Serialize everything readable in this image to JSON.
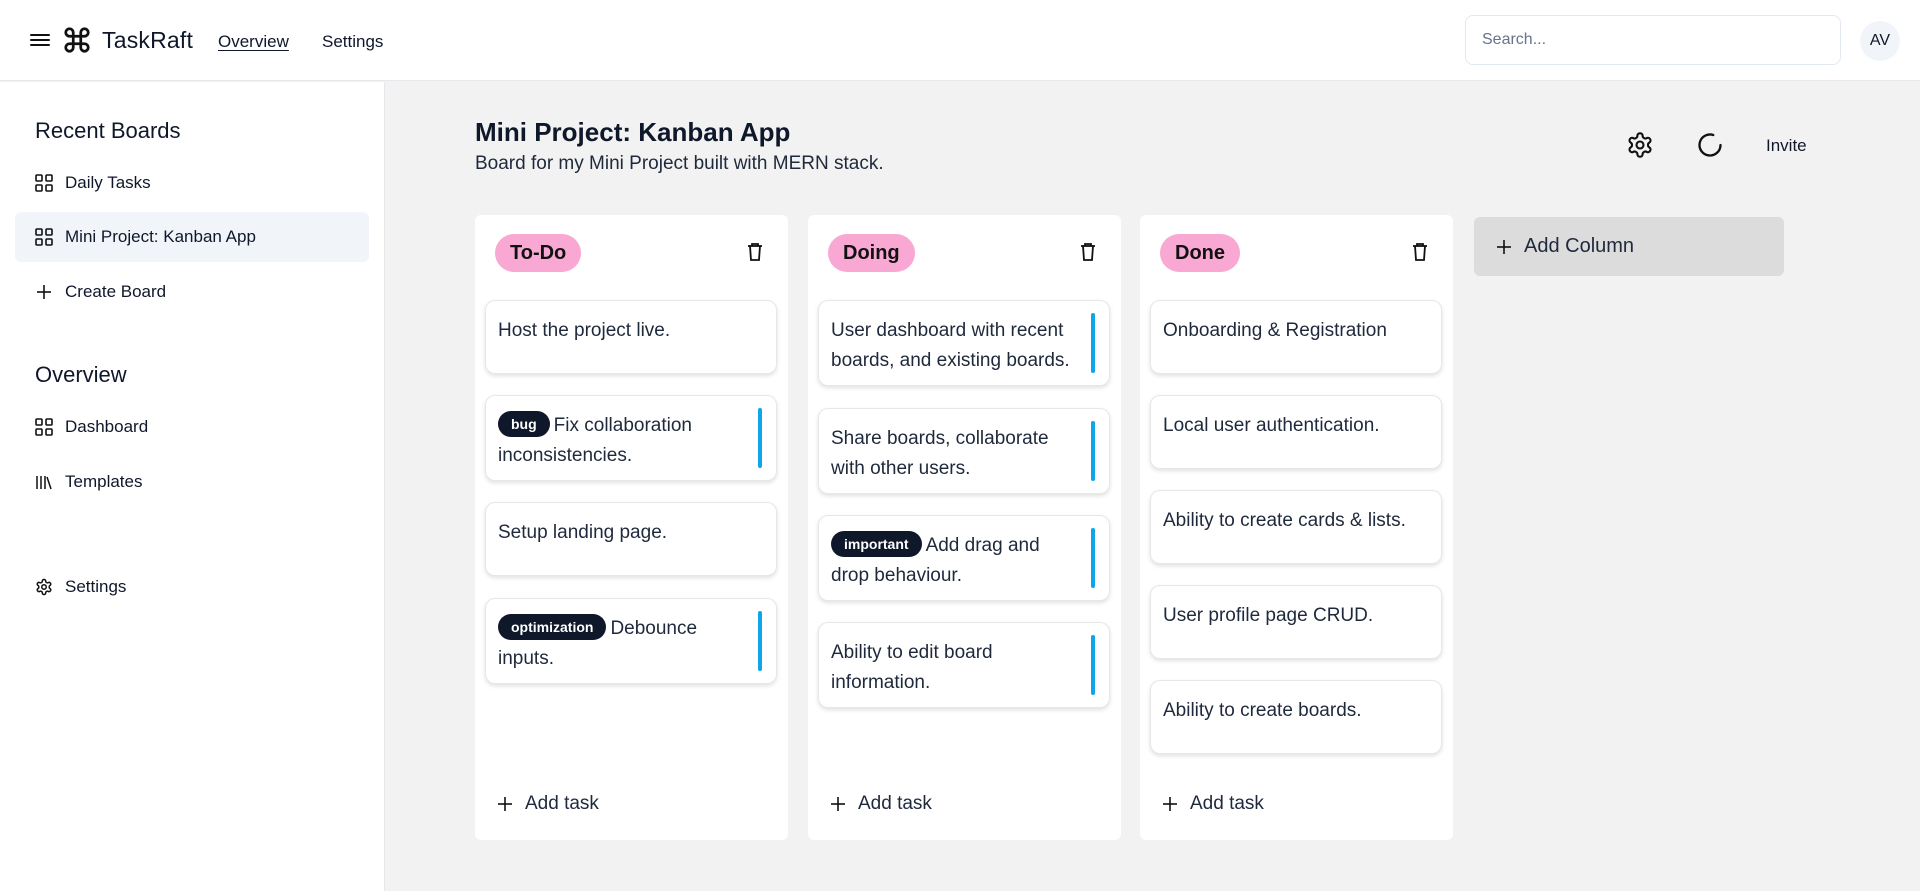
{
  "header": {
    "brand": "TaskRaft",
    "nav": [
      {
        "label": "Overview"
      },
      {
        "label": "Settings"
      }
    ],
    "search_placeholder": "Search...",
    "avatar_initials": "AV"
  },
  "sidebar": {
    "recent_title": "Recent Boards",
    "recent_items": [
      {
        "label": "Daily Tasks",
        "icon": "grid-icon"
      },
      {
        "label": "Mini Project: Kanban App",
        "icon": "grid-icon",
        "active": true
      },
      {
        "label": "Create Board",
        "icon": "plus-icon"
      }
    ],
    "overview_title": "Overview",
    "overview_items": [
      {
        "label": "Dashboard",
        "icon": "grid-icon"
      },
      {
        "label": "Templates",
        "icon": "library-icon"
      }
    ],
    "settings_label": "Settings"
  },
  "board": {
    "title": "Mini Project: Kanban App",
    "description": "Board for my Mini Project built with MERN stack.",
    "invite_label": "Invite",
    "add_column_label": "Add Column",
    "add_task_label": "Add task",
    "columns": [
      {
        "name": "To-Do",
        "cards": [
          {
            "text": "Host the project live.",
            "tag": "",
            "accent": false
          },
          {
            "text": "Fix collaboration inconsistencies.",
            "tag": "bug",
            "accent": true
          },
          {
            "text": "Setup landing page.",
            "tag": "",
            "accent": false
          },
          {
            "text": "Debounce inputs.",
            "tag": "optimization",
            "accent": true
          }
        ]
      },
      {
        "name": "Doing",
        "cards": [
          {
            "text": "User dashboard with recent boards, and existing boards.",
            "tag": "",
            "accent": true
          },
          {
            "text": "Share boards, collaborate with other users.",
            "tag": "",
            "accent": true
          },
          {
            "text": "Add drag and drop behaviour.",
            "tag": "important",
            "accent": true
          },
          {
            "text": "Ability to edit board information.",
            "tag": "",
            "accent": true
          }
        ]
      },
      {
        "name": "Done",
        "cards": [
          {
            "text": "Onboarding & Registration",
            "tag": "",
            "accent": false
          },
          {
            "text": "Local user authentication.",
            "tag": "",
            "accent": false
          },
          {
            "text": "Ability to create cards & lists.",
            "tag": "",
            "accent": false
          },
          {
            "text": "User profile page CRUD.",
            "tag": "",
            "accent": false
          },
          {
            "text": "Ability to create boards.",
            "tag": "",
            "accent": false
          }
        ]
      }
    ]
  },
  "colors": {
    "column_label_bg": "#f9a8d4",
    "card_accent": "#0ea5e9",
    "tag_bg": "#0f172a"
  }
}
